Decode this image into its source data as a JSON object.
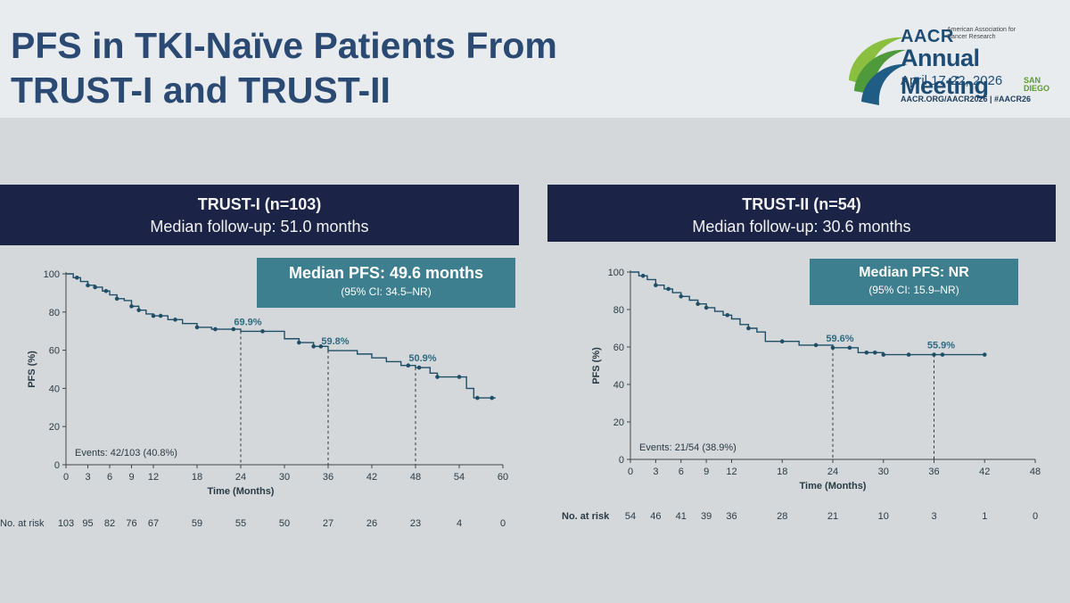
{
  "slide": {
    "title_line1": "PFS in TKI-Naïve Patients From",
    "title_line2": "TRUST-I and TRUST-II"
  },
  "logo": {
    "brand": "AACR",
    "association": "American Association for Cancer Research",
    "event": "Annual Meeting",
    "dates": "April 17-22, 2026",
    "city": "SAN DIEGO",
    "url": "AACR.ORG/AACR2026  |  #AACR26",
    "colors": {
      "navy": "#1d4d75",
      "green": "#5a9a2f"
    }
  },
  "chart_data": [
    {
      "type": "line",
      "panel_title": "TRUST-I (n=103)",
      "followup": "Median follow-up: 51.0 months",
      "median_pfs": "Median PFS: 49.6 months",
      "median_ci": "(95% CI: 34.5–NR)",
      "xlabel": "Time (Months)",
      "ylabel": "PFS (%)",
      "xlim": [
        0,
        60
      ],
      "ylim": [
        0,
        100
      ],
      "xticks": [
        0,
        3,
        6,
        9,
        12,
        18,
        24,
        30,
        36,
        42,
        48,
        54,
        60
      ],
      "yticks": [
        0,
        20,
        40,
        60,
        80,
        100
      ],
      "events": "Events: 42/103 (40.8%)",
      "series": [
        {
          "x": [
            0,
            1,
            2,
            3,
            4,
            5,
            6,
            7,
            8,
            9,
            10,
            11,
            12,
            14,
            16,
            18,
            20,
            24,
            28,
            30,
            32,
            34,
            36,
            38,
            40,
            42,
            44,
            46,
            48,
            49,
            50,
            51,
            53,
            55,
            56,
            59
          ],
          "y": [
            100,
            98,
            96,
            94,
            93,
            91,
            89,
            87,
            86,
            83,
            81,
            79,
            78,
            76,
            74,
            72,
            71,
            69.9,
            69.9,
            66,
            64,
            62,
            59.8,
            59.8,
            58,
            56,
            54,
            52,
            50.9,
            50.9,
            48,
            46,
            46,
            40,
            35,
            35
          ],
          "censor_x": [
            1.5,
            3,
            4,
            5.5,
            7,
            9,
            10,
            12,
            13,
            15,
            18,
            20.5,
            23,
            27,
            32,
            34,
            35,
            47,
            48.5,
            51,
            54,
            56.5,
            58.5
          ]
        }
      ],
      "landmarks": [
        {
          "x": 24,
          "label": "69.9%"
        },
        {
          "x": 36,
          "label": "59.8%"
        },
        {
          "x": 48,
          "label": "50.9%"
        }
      ],
      "at_risk_label": "No. at risk",
      "at_risk": [
        "103",
        "95",
        "82",
        "76",
        "67",
        "59",
        "55",
        "50",
        "27",
        "26",
        "23",
        "4",
        "0"
      ]
    },
    {
      "type": "line",
      "panel_title": "TRUST-II (n=54)",
      "followup": "Median follow-up: 30.6 months",
      "median_pfs": "Median PFS: NR",
      "median_ci": "(95% CI: 15.9–NR)",
      "xlabel": "Time (Months)",
      "ylabel": "PFS (%)",
      "xlim": [
        0,
        48
      ],
      "ylim": [
        0,
        100
      ],
      "xticks": [
        0,
        3,
        6,
        9,
        12,
        18,
        24,
        30,
        36,
        42,
        48
      ],
      "yticks": [
        0,
        20,
        40,
        60,
        80,
        100
      ],
      "events": "Events: 21/54 (38.9%)",
      "series": [
        {
          "x": [
            0,
            1,
            2,
            3,
            4,
            5,
            6,
            7,
            8,
            9,
            10,
            11,
            12,
            13,
            14,
            15,
            16,
            20,
            24,
            26,
            27,
            30,
            36,
            42
          ],
          "y": [
            100,
            98,
            96,
            93,
            91,
            89,
            87,
            85,
            83,
            81,
            79,
            77,
            75,
            72,
            70,
            68,
            63,
            61,
            59.6,
            59.6,
            57,
            55.9,
            55.9,
            55.9
          ],
          "censor_x": [
            1.5,
            3,
            4.5,
            6,
            8,
            9,
            11.5,
            14,
            18,
            22,
            24,
            26,
            28,
            29,
            30,
            33,
            36,
            37,
            42
          ]
        }
      ],
      "landmarks": [
        {
          "x": 24,
          "label": "59.6%"
        },
        {
          "x": 36,
          "label": "55.9%"
        }
      ],
      "at_risk_label": "No. at risk",
      "at_risk": [
        "54",
        "46",
        "41",
        "39",
        "36",
        "28",
        "21",
        "10",
        "3",
        "1",
        "0"
      ]
    }
  ]
}
